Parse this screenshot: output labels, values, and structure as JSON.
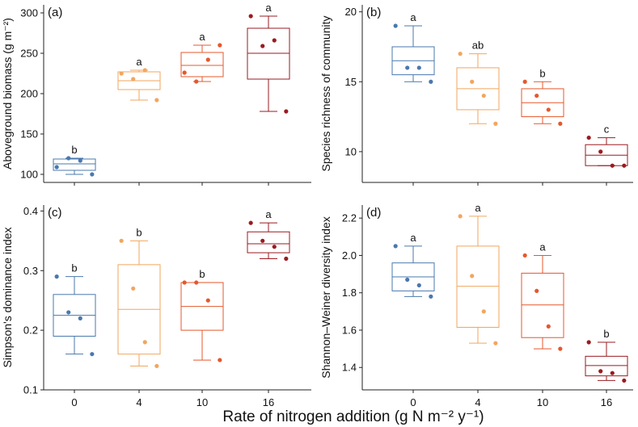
{
  "chart_data": {
    "type": "boxplot",
    "xlabel": "Rate of nitrogen addition (g N m⁻² y⁻¹)",
    "categories": [
      "0",
      "4",
      "10",
      "16"
    ],
    "colors": [
      "#4a78ad",
      "#f2a65e",
      "#e5582d",
      "#9a1b20"
    ],
    "panels": [
      {
        "label": "(a)",
        "ylabel": "Aboveground biomass (g m⁻²)",
        "ylim": [
          90,
          310
        ],
        "yticks": [
          100,
          150,
          200,
          250,
          300
        ],
        "ytick_labels": [
          "100",
          "150",
          "200",
          "250",
          "300"
        ],
        "boxes": [
          {
            "category": "0",
            "min": 100,
            "q1": 105,
            "median": 113,
            "q3": 119,
            "max": 120,
            "points": [
              109,
              120,
              117,
              100
            ],
            "sig": "b"
          },
          {
            "category": "4",
            "min": 192,
            "q1": 205,
            "median": 216,
            "q3": 227,
            "max": 229,
            "points": [
              225,
              218,
              229,
              192
            ],
            "sig": "a"
          },
          {
            "category": "10",
            "min": 215,
            "q1": 221,
            "median": 235,
            "q3": 251,
            "max": 260,
            "points": [
              226,
              215,
              242,
              260
            ],
            "sig": "a"
          },
          {
            "category": "16",
            "min": 178,
            "q1": 218,
            "median": 250,
            "q3": 281,
            "max": 296,
            "points": [
              296,
              259,
              266,
              178
            ],
            "sig": "a"
          }
        ]
      },
      {
        "label": "(b)",
        "ylabel": "Species richness of community",
        "ylim": [
          7.8,
          20.5
        ],
        "yticks": [
          10,
          15,
          20
        ],
        "ytick_labels": [
          "10",
          "15",
          "20"
        ],
        "boxes": [
          {
            "category": "0",
            "min": 15,
            "q1": 15.5,
            "median": 16.5,
            "q3": 17.5,
            "max": 19,
            "points": [
              19,
              16,
              16,
              15
            ],
            "sig": "a"
          },
          {
            "category": "4",
            "min": 12,
            "q1": 13,
            "median": 14.5,
            "q3": 16,
            "max": 17,
            "points": [
              17,
              15,
              14,
              12
            ],
            "sig": "ab"
          },
          {
            "category": "10",
            "min": 12,
            "q1": 12.5,
            "median": 13.5,
            "q3": 14.5,
            "max": 15,
            "points": [
              15,
              14,
              13,
              12
            ],
            "sig": "b"
          },
          {
            "category": "16",
            "min": 9,
            "q1": 9,
            "median": 9.75,
            "q3": 10.5,
            "max": 11,
            "points": [
              11,
              10,
              9,
              9
            ],
            "sig": "c"
          }
        ]
      },
      {
        "label": "(c)",
        "ylabel": "Simpson's dominance index",
        "ylim": [
          0.1,
          0.41
        ],
        "yticks": [
          0.1,
          0.2,
          0.3,
          0.4
        ],
        "ytick_labels": [
          "0.1",
          "0.2",
          "0.3",
          "0.4"
        ],
        "boxes": [
          {
            "category": "0",
            "min": 0.16,
            "q1": 0.19,
            "median": 0.225,
            "q3": 0.26,
            "max": 0.29,
            "points": [
              0.29,
              0.23,
              0.22,
              0.16
            ],
            "sig": "b"
          },
          {
            "category": "4",
            "min": 0.14,
            "q1": 0.16,
            "median": 0.235,
            "q3": 0.31,
            "max": 0.35,
            "points": [
              0.35,
              0.27,
              0.18,
              0.14
            ],
            "sig": "b"
          },
          {
            "category": "10",
            "min": 0.15,
            "q1": 0.2,
            "median": 0.24,
            "q3": 0.28,
            "max": 0.28,
            "points": [
              0.28,
              0.28,
              0.25,
              0.15
            ],
            "sig": "b"
          },
          {
            "category": "16",
            "min": 0.32,
            "q1": 0.33,
            "median": 0.345,
            "q3": 0.365,
            "max": 0.38,
            "points": [
              0.38,
              0.35,
              0.34,
              0.32
            ],
            "sig": "a"
          }
        ]
      },
      {
        "label": "(d)",
        "ylabel": "Shannon–Weiner diversity index",
        "ylim": [
          1.28,
          2.27
        ],
        "yticks": [
          1.4,
          1.6,
          1.8,
          2.0,
          2.2
        ],
        "ytick_labels": [
          "1.4",
          "1.6",
          "1.8",
          "2.0",
          "2.2"
        ],
        "boxes": [
          {
            "category": "0",
            "min": 1.78,
            "q1": 1.81,
            "median": 1.885,
            "q3": 1.96,
            "max": 2.05,
            "points": [
              2.05,
              1.87,
              1.84,
              1.78
            ],
            "sig": "a"
          },
          {
            "category": "4",
            "min": 1.53,
            "q1": 1.615,
            "median": 1.835,
            "q3": 2.05,
            "max": 2.21,
            "points": [
              2.21,
              1.89,
              1.7,
              1.53
            ],
            "sig": "a"
          },
          {
            "category": "10",
            "min": 1.5,
            "q1": 1.56,
            "median": 1.735,
            "q3": 1.905,
            "max": 2.0,
            "points": [
              2.0,
              1.81,
              1.62,
              1.5
            ],
            "sig": "a"
          },
          {
            "category": "16",
            "min": 1.33,
            "q1": 1.355,
            "median": 1.41,
            "q3": 1.46,
            "max": 1.535,
            "points": [
              1.535,
              1.38,
              1.37,
              1.33
            ],
            "sig": "b"
          }
        ]
      }
    ]
  }
}
